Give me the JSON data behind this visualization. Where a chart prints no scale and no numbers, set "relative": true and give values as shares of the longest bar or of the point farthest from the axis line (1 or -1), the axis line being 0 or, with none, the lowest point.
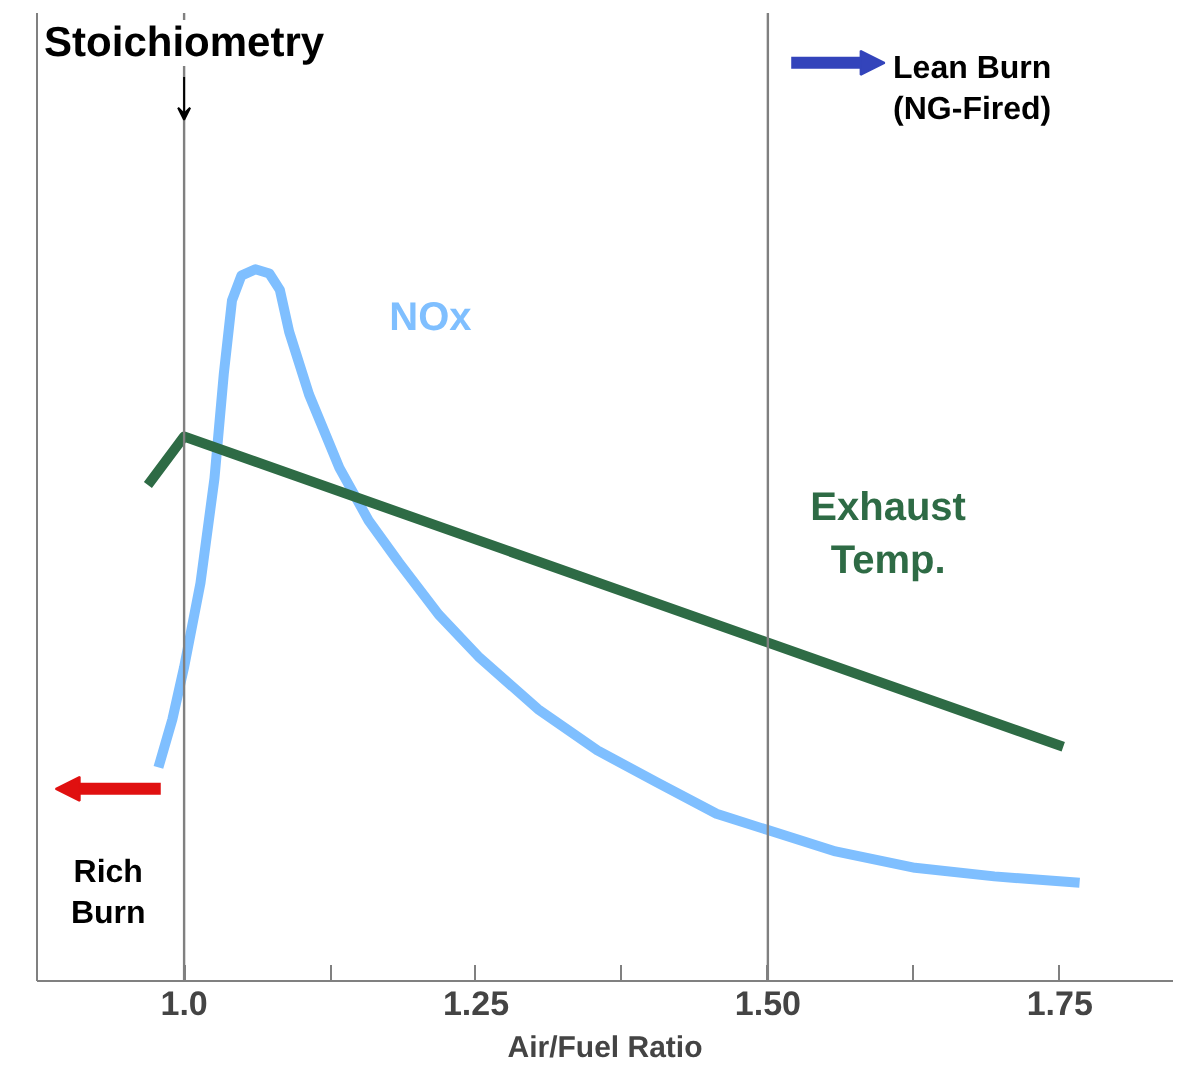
{
  "chart_data": {
    "type": "line",
    "relative": true,
    "xlabel": "Air/Fuel Ratio",
    "xlim": [
      0.874,
      1.847
    ],
    "xticks": [
      {
        "value": 1.0,
        "label": "1.0"
      },
      {
        "value": 1.125,
        "label": null
      },
      1.25,
      {
        "value": 1.375,
        "label": null
      },
      {
        "value": 1.5,
        "label": "1.50"
      },
      {
        "value": 1.625,
        "label": null
      },
      1.75
    ],
    "series": [
      {
        "name": "NOx",
        "color": "#7fbfff",
        "x": [
          0.978,
          0.99,
          1.0,
          1.014,
          1.026,
          1.034,
          1.041,
          1.049,
          1.061,
          1.073,
          1.082,
          1.09,
          1.107,
          1.133,
          1.158,
          1.184,
          1.218,
          1.252,
          1.303,
          1.354,
          1.405,
          1.456,
          1.5,
          1.558,
          1.626,
          1.694,
          1.767
        ],
        "values": [
          0.3,
          0.368,
          0.441,
          0.559,
          0.706,
          0.853,
          0.956,
          0.991,
          1.0,
          0.994,
          0.971,
          0.912,
          0.824,
          0.721,
          0.647,
          0.588,
          0.515,
          0.456,
          0.382,
          0.324,
          0.279,
          0.235,
          0.212,
          0.182,
          0.159,
          0.147,
          0.138
        ]
      },
      {
        "name": "Exhaust Temp.",
        "color": "#2e6b45",
        "x": [
          0.969,
          1.0,
          1.753
        ],
        "values": [
          0.697,
          0.765,
          0.329
        ]
      }
    ],
    "ref_lines": [
      {
        "axis": "x",
        "value": 1.0,
        "label": "Stoichiometry",
        "color": "#808080"
      },
      {
        "axis": "x",
        "value": 1.5,
        "color": "#808080"
      }
    ],
    "annotations": [
      "Lean Burn (NG-Fired)",
      "Rich Burn"
    ],
    "grid": false,
    "tick_labels": "x",
    "marker": "none",
    "line_style": "solid"
  }
}
